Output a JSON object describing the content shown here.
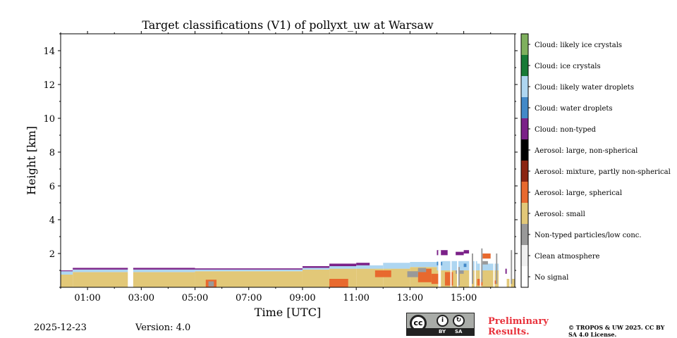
{
  "chart_data": {
    "type": "heatmap",
    "title": "Target classifications (V1) of pollyxt_uw at Warsaw",
    "xlabel": "Time [UTC]",
    "ylabel": "Height [km]",
    "xlim": [
      0,
      16.9
    ],
    "ylim": [
      0,
      15
    ],
    "x_ticks": [
      {
        "value": 1,
        "label": "01:00"
      },
      {
        "value": 3,
        "label": "03:00"
      },
      {
        "value": 5,
        "label": "05:00"
      },
      {
        "value": 7,
        "label": "07:00"
      },
      {
        "value": 9,
        "label": "09:00"
      },
      {
        "value": 11,
        "label": "11:00"
      },
      {
        "value": 13,
        "label": "13:00"
      },
      {
        "value": 15,
        "label": "15:00"
      }
    ],
    "y_ticks": [
      {
        "value": 2,
        "label": "2"
      },
      {
        "value": 4,
        "label": "4"
      },
      {
        "value": 6,
        "label": "6"
      },
      {
        "value": 8,
        "label": "8"
      },
      {
        "value": 10,
        "label": "10"
      },
      {
        "value": 12,
        "label": "12"
      },
      {
        "value": 14,
        "label": "14"
      }
    ],
    "classes": [
      {
        "label": "No signal",
        "color": "#ffffff"
      },
      {
        "label": "Clean atmosphere",
        "color": "#f0f0f0"
      },
      {
        "label": "Non-typed particles/low conc.",
        "color": "#999999"
      },
      {
        "label": "Aerosol: small",
        "color": "#e2c878"
      },
      {
        "label": "Aerosol: large, spherical",
        "color": "#e8692e"
      },
      {
        "label": "Aerosol: mixture, partly non-spherical",
        "color": "#8b2512"
      },
      {
        "label": "Aerosol: large, non-spherical",
        "color": "#000000"
      },
      {
        "label": "Cloud: non-typed",
        "color": "#7b2188"
      },
      {
        "label": "Cloud: water droplets",
        "color": "#4289c8"
      },
      {
        "label": "Cloud: likely water droplets",
        "color": "#aed6f1"
      },
      {
        "label": "Cloud: ice crystals",
        "color": "#177a36"
      },
      {
        "label": "Cloud: likely ice crystals",
        "color": "#7fb05e"
      }
    ],
    "layers": [
      {
        "class": "Aerosol: small",
        "segments": [
          [
            0.0,
            0.45,
            0.0,
            0.75
          ],
          [
            0.45,
            2.5,
            0.0,
            0.9
          ],
          [
            2.7,
            5.0,
            0.0,
            0.9
          ],
          [
            5.0,
            9.0,
            0.0,
            0.95
          ],
          [
            9.0,
            10.0,
            0.0,
            1.05
          ],
          [
            10.0,
            11.0,
            0.0,
            1.1
          ],
          [
            11.0,
            12.0,
            0.0,
            1.1
          ],
          [
            12.0,
            13.0,
            0.0,
            1.1
          ],
          [
            13.0,
            14.0,
            0.0,
            1.2
          ],
          [
            14.0,
            15.5,
            0.0,
            1.0
          ],
          [
            15.5,
            16.3,
            0.0,
            1.0
          ],
          [
            16.6,
            16.9,
            0.0,
            0.5
          ]
        ]
      },
      {
        "class": "Cloud: likely water droplets",
        "segments": [
          [
            0.0,
            0.45,
            0.75,
            0.95
          ],
          [
            0.45,
            2.5,
            0.9,
            1.05
          ],
          [
            2.7,
            5.0,
            0.9,
            1.05
          ],
          [
            5.0,
            9.0,
            0.95,
            1.05
          ],
          [
            9.0,
            10.0,
            1.05,
            1.15
          ],
          [
            10.0,
            11.0,
            1.1,
            1.25
          ],
          [
            11.0,
            12.0,
            1.1,
            1.3
          ],
          [
            12.0,
            13.0,
            1.1,
            1.45
          ],
          [
            13.0,
            14.0,
            1.2,
            1.5
          ],
          [
            14.0,
            15.5,
            1.0,
            1.55
          ],
          [
            15.5,
            16.3,
            1.0,
            1.4
          ]
        ]
      },
      {
        "class": "Cloud: non-typed",
        "segments": [
          [
            0.0,
            0.45,
            0.95,
            1.0
          ],
          [
            0.45,
            2.5,
            1.05,
            1.15
          ],
          [
            2.7,
            5.0,
            1.05,
            1.15
          ],
          [
            5.0,
            9.0,
            1.05,
            1.12
          ],
          [
            9.0,
            10.0,
            1.15,
            1.25
          ],
          [
            10.0,
            11.0,
            1.25,
            1.4
          ],
          [
            11.0,
            11.5,
            1.3,
            1.45
          ],
          [
            14.0,
            14.4,
            1.9,
            2.2
          ],
          [
            14.7,
            15.0,
            1.9,
            2.1
          ],
          [
            15.0,
            15.2,
            2.0,
            2.2
          ],
          [
            16.5,
            16.6,
            0.8,
            1.1
          ]
        ]
      },
      {
        "class": "Aerosol: large, spherical",
        "segments": [
          [
            10.0,
            10.7,
            0.0,
            0.5
          ],
          [
            11.7,
            12.3,
            0.6,
            1.0
          ],
          [
            13.3,
            13.8,
            0.3,
            1.1
          ],
          [
            13.8,
            14.1,
            0.2,
            0.8
          ],
          [
            14.3,
            14.6,
            0.1,
            0.9
          ],
          [
            15.7,
            16.0,
            1.7,
            2.0
          ],
          [
            5.4,
            5.8,
            0.0,
            0.45
          ],
          [
            15.5,
            15.7,
            0.1,
            0.5
          ],
          [
            16.1,
            16.2,
            0.2,
            0.4
          ]
        ]
      },
      {
        "class": "Non-typed particles/low conc.",
        "segments": [
          [
            5.5,
            5.7,
            0.05,
            0.35
          ],
          [
            12.9,
            13.3,
            0.6,
            0.95
          ],
          [
            13.3,
            13.6,
            0.9,
            1.15
          ],
          [
            14.7,
            15.0,
            0.8,
            1.0
          ],
          [
            15.7,
            15.9,
            1.35,
            1.55
          ]
        ]
      },
      {
        "class": "Cloud: water droplets",
        "segments": [
          [
            14.0,
            14.2,
            1.3,
            1.5
          ],
          [
            15.0,
            15.1,
            1.2,
            1.4
          ]
        ]
      },
      {
        "class": "No signal",
        "segments": [
          [
            14.05,
            14.15,
            0.0,
            2.2
          ],
          [
            14.5,
            14.55,
            0.0,
            2.2
          ],
          [
            14.75,
            14.8,
            0.0,
            1.8
          ],
          [
            15.2,
            15.3,
            0.0,
            2.3
          ],
          [
            15.4,
            15.45,
            0.0,
            2.3
          ],
          [
            15.6,
            15.65,
            0.0,
            2.3
          ],
          [
            16.1,
            16.15,
            0.0,
            2.3
          ],
          [
            16.3,
            16.55,
            0.0,
            2.2
          ],
          [
            16.7,
            16.75,
            0.0,
            2.3
          ]
        ]
      },
      {
        "class": "Non-typed particles/low conc.",
        "segments": [
          [
            14.8,
            14.85,
            0.1,
            1.2
          ],
          [
            15.3,
            15.35,
            0.2,
            2.0
          ],
          [
            15.65,
            15.7,
            0.3,
            2.3
          ],
          [
            16.2,
            16.25,
            0.2,
            2.0
          ],
          [
            16.75,
            16.8,
            0.2,
            2.2
          ]
        ]
      }
    ]
  },
  "footer": {
    "date": "2025-12-23",
    "version": "Version: 4.0",
    "preliminary": "Preliminary Results.",
    "copyright": "© TROPOS & UW 2025. CC BY SA 4.0 License.",
    "license_badge": {
      "cc": "cc",
      "by": "BY",
      "sa": "SA"
    }
  }
}
